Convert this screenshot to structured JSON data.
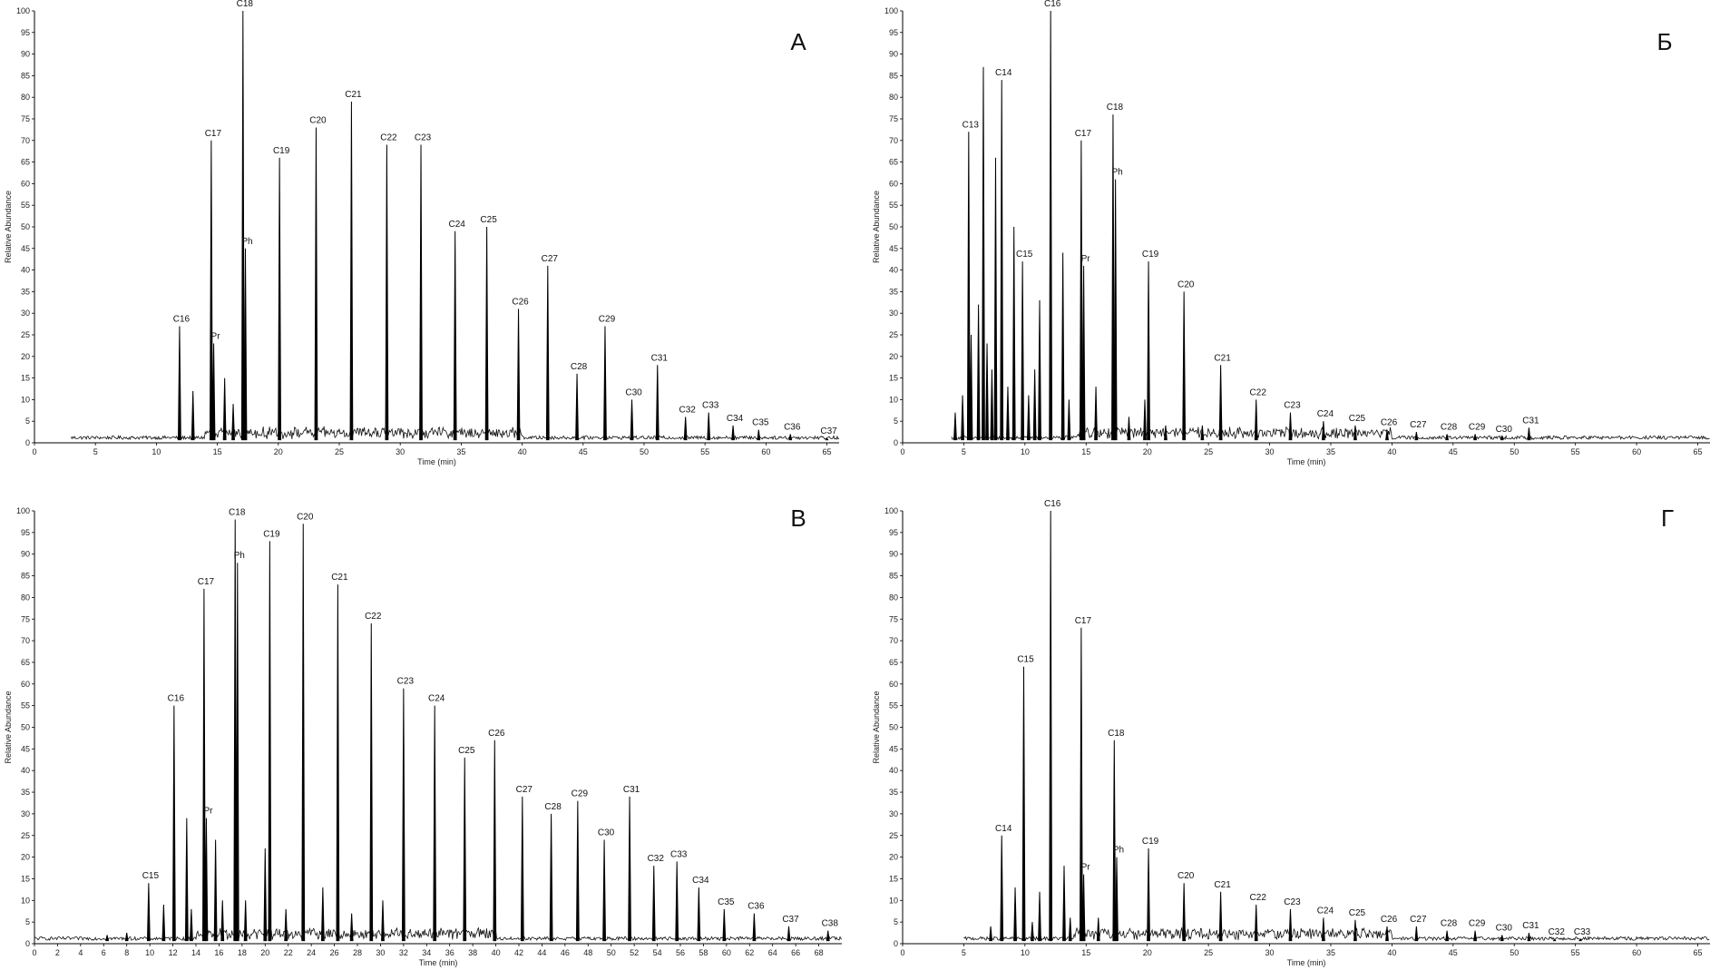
{
  "chart_data": [
    {
      "type": "line",
      "panel_label": "А",
      "xlabel": "Time (min)",
      "ylabel": "Relative Abundance",
      "xlim": [
        0,
        66
      ],
      "ylim": [
        0,
        100
      ],
      "xticks": [
        0,
        5,
        10,
        15,
        20,
        25,
        30,
        35,
        40,
        45,
        50,
        55,
        60,
        65
      ],
      "yticks": [
        0,
        5,
        10,
        15,
        20,
        25,
        30,
        35,
        40,
        45,
        50,
        55,
        60,
        65,
        70,
        75,
        80,
        85,
        90,
        95,
        100
      ],
      "baseline_start": 3,
      "peaks": [
        {
          "label": "C16",
          "x": 11.9,
          "y": 27
        },
        {
          "label": "",
          "x": 13.0,
          "y": 12
        },
        {
          "label": "C17",
          "x": 14.5,
          "y": 70
        },
        {
          "label": "Pr",
          "x": 14.7,
          "y": 23
        },
        {
          "label": "",
          "x": 15.6,
          "y": 15
        },
        {
          "label": "",
          "x": 16.3,
          "y": 9
        },
        {
          "label": "C18",
          "x": 17.1,
          "y": 100
        },
        {
          "label": "Ph",
          "x": 17.3,
          "y": 45
        },
        {
          "label": "C19",
          "x": 20.1,
          "y": 66
        },
        {
          "label": "C20",
          "x": 23.1,
          "y": 73
        },
        {
          "label": "C21",
          "x": 26.0,
          "y": 79
        },
        {
          "label": "C22",
          "x": 28.9,
          "y": 69
        },
        {
          "label": "C23",
          "x": 31.7,
          "y": 69
        },
        {
          "label": "C24",
          "x": 34.5,
          "y": 49
        },
        {
          "label": "C25",
          "x": 37.1,
          "y": 50
        },
        {
          "label": "C26",
          "x": 39.7,
          "y": 31
        },
        {
          "label": "C27",
          "x": 42.1,
          "y": 41
        },
        {
          "label": "C28",
          "x": 44.5,
          "y": 16
        },
        {
          "label": "C29",
          "x": 46.8,
          "y": 27
        },
        {
          "label": "C30",
          "x": 49.0,
          "y": 10
        },
        {
          "label": "C31",
          "x": 51.1,
          "y": 18
        },
        {
          "label": "C32",
          "x": 53.4,
          "y": 6
        },
        {
          "label": "C33",
          "x": 55.3,
          "y": 7
        },
        {
          "label": "C34",
          "x": 57.3,
          "y": 4
        },
        {
          "label": "C35",
          "x": 59.4,
          "y": 3
        },
        {
          "label": "C36",
          "x": 62.0,
          "y": 2
        },
        {
          "label": "C37",
          "x": 65.0,
          "y": 1
        }
      ]
    },
    {
      "type": "line",
      "panel_label": "Б",
      "xlabel": "Time (min)",
      "ylabel": "Relative Abundance",
      "xlim": [
        0,
        66
      ],
      "ylim": [
        0,
        100
      ],
      "xticks": [
        0,
        5,
        10,
        15,
        20,
        25,
        30,
        35,
        40,
        45,
        50,
        55,
        60,
        65
      ],
      "yticks": [
        0,
        5,
        10,
        15,
        20,
        25,
        30,
        35,
        40,
        45,
        50,
        55,
        60,
        65,
        70,
        75,
        80,
        85,
        90,
        95,
        100
      ],
      "baseline_start": 4,
      "peaks": [
        {
          "label": "",
          "x": 4.3,
          "y": 7
        },
        {
          "label": "",
          "x": 4.9,
          "y": 11
        },
        {
          "label": "C13",
          "x": 5.4,
          "y": 72
        },
        {
          "label": "",
          "x": 5.6,
          "y": 25
        },
        {
          "label": "",
          "x": 6.2,
          "y": 32
        },
        {
          "label": "",
          "x": 6.6,
          "y": 87
        },
        {
          "label": "",
          "x": 6.9,
          "y": 23
        },
        {
          "label": "",
          "x": 7.3,
          "y": 17
        },
        {
          "label": "",
          "x": 7.6,
          "y": 66
        },
        {
          "label": "C14",
          "x": 8.1,
          "y": 84
        },
        {
          "label": "",
          "x": 8.6,
          "y": 13
        },
        {
          "label": "",
          "x": 9.1,
          "y": 50
        },
        {
          "label": "C15",
          "x": 9.8,
          "y": 42
        },
        {
          "label": "",
          "x": 10.3,
          "y": 11
        },
        {
          "label": "",
          "x": 10.8,
          "y": 17
        },
        {
          "label": "",
          "x": 11.2,
          "y": 33
        },
        {
          "label": "C16",
          "x": 12.1,
          "y": 100
        },
        {
          "label": "",
          "x": 13.1,
          "y": 44
        },
        {
          "label": "",
          "x": 13.6,
          "y": 10
        },
        {
          "label": "C17",
          "x": 14.6,
          "y": 70
        },
        {
          "label": "Pr",
          "x": 14.8,
          "y": 41
        },
        {
          "label": "",
          "x": 15.8,
          "y": 13
        },
        {
          "label": "C18",
          "x": 17.2,
          "y": 76
        },
        {
          "label": "Ph",
          "x": 17.4,
          "y": 61
        },
        {
          "label": "",
          "x": 18.5,
          "y": 6
        },
        {
          "label": "C19",
          "x": 20.1,
          "y": 42
        },
        {
          "label": "",
          "x": 19.8,
          "y": 10
        },
        {
          "label": "",
          "x": 21.5,
          "y": 4
        },
        {
          "label": "C20",
          "x": 23.0,
          "y": 35
        },
        {
          "label": "",
          "x": 24.5,
          "y": 4
        },
        {
          "label": "C21",
          "x": 26.0,
          "y": 18
        },
        {
          "label": "C22",
          "x": 28.9,
          "y": 10
        },
        {
          "label": "C23",
          "x": 31.7,
          "y": 7
        },
        {
          "label": "C24",
          "x": 34.4,
          "y": 5
        },
        {
          "label": "C25",
          "x": 37.0,
          "y": 4
        },
        {
          "label": "C26",
          "x": 39.6,
          "y": 3
        },
        {
          "label": "C27",
          "x": 42.0,
          "y": 2.5
        },
        {
          "label": "C28",
          "x": 44.5,
          "y": 2
        },
        {
          "label": "C29",
          "x": 46.8,
          "y": 2
        },
        {
          "label": "C30",
          "x": 49.0,
          "y": 1.5
        },
        {
          "label": "C31",
          "x": 51.2,
          "y": 3.5
        }
      ]
    },
    {
      "type": "line",
      "panel_label": "В",
      "xlabel": "Time (min)",
      "ylabel": "Relative Abundance",
      "xlim": [
        0,
        70
      ],
      "ylim": [
        0,
        100
      ],
      "xticks": [
        0,
        2,
        4,
        6,
        8,
        10,
        12,
        14,
        16,
        18,
        20,
        22,
        24,
        26,
        28,
        30,
        32,
        34,
        36,
        38,
        40,
        42,
        44,
        46,
        48,
        50,
        52,
        54,
        56,
        58,
        60,
        62,
        64,
        66,
        68
      ],
      "yticks": [
        0,
        5,
        10,
        15,
        20,
        25,
        30,
        35,
        40,
        45,
        50,
        55,
        60,
        65,
        70,
        75,
        80,
        85,
        90,
        95,
        100
      ],
      "baseline_start": 0,
      "peaks": [
        {
          "label": "",
          "x": 6.3,
          "y": 2
        },
        {
          "label": "",
          "x": 8.0,
          "y": 2.5
        },
        {
          "label": "C15",
          "x": 9.9,
          "y": 14
        },
        {
          "label": "",
          "x": 11.2,
          "y": 9
        },
        {
          "label": "C16",
          "x": 12.1,
          "y": 55
        },
        {
          "label": "",
          "x": 13.2,
          "y": 29
        },
        {
          "label": "",
          "x": 13.6,
          "y": 8
        },
        {
          "label": "C17",
          "x": 14.7,
          "y": 82
        },
        {
          "label": "Pr",
          "x": 14.9,
          "y": 29
        },
        {
          "label": "",
          "x": 15.7,
          "y": 24
        },
        {
          "label": "",
          "x": 16.3,
          "y": 10
        },
        {
          "label": "C18",
          "x": 17.4,
          "y": 98
        },
        {
          "label": "Ph",
          "x": 17.6,
          "y": 88
        },
        {
          "label": "",
          "x": 18.3,
          "y": 10
        },
        {
          "label": "",
          "x": 20.0,
          "y": 22
        },
        {
          "label": "C19",
          "x": 20.4,
          "y": 93
        },
        {
          "label": "",
          "x": 21.8,
          "y": 8
        },
        {
          "label": "C20",
          "x": 23.3,
          "y": 97
        },
        {
          "label": "",
          "x": 25.0,
          "y": 13
        },
        {
          "label": "C21",
          "x": 26.3,
          "y": 83
        },
        {
          "label": "",
          "x": 27.5,
          "y": 7
        },
        {
          "label": "C22",
          "x": 29.2,
          "y": 74
        },
        {
          "label": "",
          "x": 30.2,
          "y": 10
        },
        {
          "label": "C23",
          "x": 32.0,
          "y": 59
        },
        {
          "label": "C24",
          "x": 34.7,
          "y": 55
        },
        {
          "label": "C25",
          "x": 37.3,
          "y": 43
        },
        {
          "label": "C26",
          "x": 39.9,
          "y": 47
        },
        {
          "label": "C27",
          "x": 42.3,
          "y": 34
        },
        {
          "label": "C28",
          "x": 44.8,
          "y": 30
        },
        {
          "label": "C29",
          "x": 47.1,
          "y": 33
        },
        {
          "label": "C30",
          "x": 49.4,
          "y": 24
        },
        {
          "label": "C31",
          "x": 51.6,
          "y": 34
        },
        {
          "label": "C32",
          "x": 53.7,
          "y": 18
        },
        {
          "label": "C33",
          "x": 55.7,
          "y": 19
        },
        {
          "label": "C34",
          "x": 57.6,
          "y": 13
        },
        {
          "label": "C35",
          "x": 59.8,
          "y": 8
        },
        {
          "label": "C36",
          "x": 62.4,
          "y": 7
        },
        {
          "label": "C37",
          "x": 65.4,
          "y": 4
        },
        {
          "label": "C38",
          "x": 68.8,
          "y": 3
        }
      ]
    },
    {
      "type": "line",
      "panel_label": "Г",
      "xlabel": "Time (min)",
      "ylabel": "Relative Abundance",
      "xlim": [
        0,
        66
      ],
      "ylim": [
        0,
        100
      ],
      "xticks": [
        0,
        5,
        10,
        15,
        20,
        25,
        30,
        35,
        40,
        45,
        50,
        55,
        60,
        65
      ],
      "yticks": [
        0,
        5,
        10,
        15,
        20,
        25,
        30,
        35,
        40,
        45,
        50,
        55,
        60,
        65,
        70,
        75,
        80,
        85,
        90,
        95,
        100
      ],
      "baseline_start": 5,
      "peaks": [
        {
          "label": "",
          "x": 7.2,
          "y": 4
        },
        {
          "label": "C14",
          "x": 8.1,
          "y": 25
        },
        {
          "label": "",
          "x": 9.2,
          "y": 13
        },
        {
          "label": "C15",
          "x": 9.9,
          "y": 64
        },
        {
          "label": "",
          "x": 10.6,
          "y": 5
        },
        {
          "label": "",
          "x": 11.2,
          "y": 12
        },
        {
          "label": "C16",
          "x": 12.1,
          "y": 100
        },
        {
          "label": "",
          "x": 13.2,
          "y": 18
        },
        {
          "label": "",
          "x": 13.7,
          "y": 6
        },
        {
          "label": "C17",
          "x": 14.6,
          "y": 73
        },
        {
          "label": "Pr",
          "x": 14.8,
          "y": 16
        },
        {
          "label": "",
          "x": 16.0,
          "y": 6
        },
        {
          "label": "C18",
          "x": 17.3,
          "y": 47
        },
        {
          "label": "Ph",
          "x": 17.5,
          "y": 20
        },
        {
          "label": "C19",
          "x": 20.1,
          "y": 22
        },
        {
          "label": "C20",
          "x": 23.0,
          "y": 14
        },
        {
          "label": "C21",
          "x": 26.0,
          "y": 12
        },
        {
          "label": "C22",
          "x": 28.9,
          "y": 9
        },
        {
          "label": "C23",
          "x": 31.7,
          "y": 8
        },
        {
          "label": "C24",
          "x": 34.4,
          "y": 6
        },
        {
          "label": "C25",
          "x": 37.0,
          "y": 5.5
        },
        {
          "label": "C26",
          "x": 39.6,
          "y": 4
        },
        {
          "label": "C27",
          "x": 42.0,
          "y": 4
        },
        {
          "label": "C28",
          "x": 44.5,
          "y": 3
        },
        {
          "label": "C29",
          "x": 46.8,
          "y": 3
        },
        {
          "label": "C30",
          "x": 49.0,
          "y": 2
        },
        {
          "label": "C31",
          "x": 51.2,
          "y": 2.5
        },
        {
          "label": "C32",
          "x": 53.3,
          "y": 1
        },
        {
          "label": "C33",
          "x": 55.4,
          "y": 1
        }
      ]
    }
  ]
}
